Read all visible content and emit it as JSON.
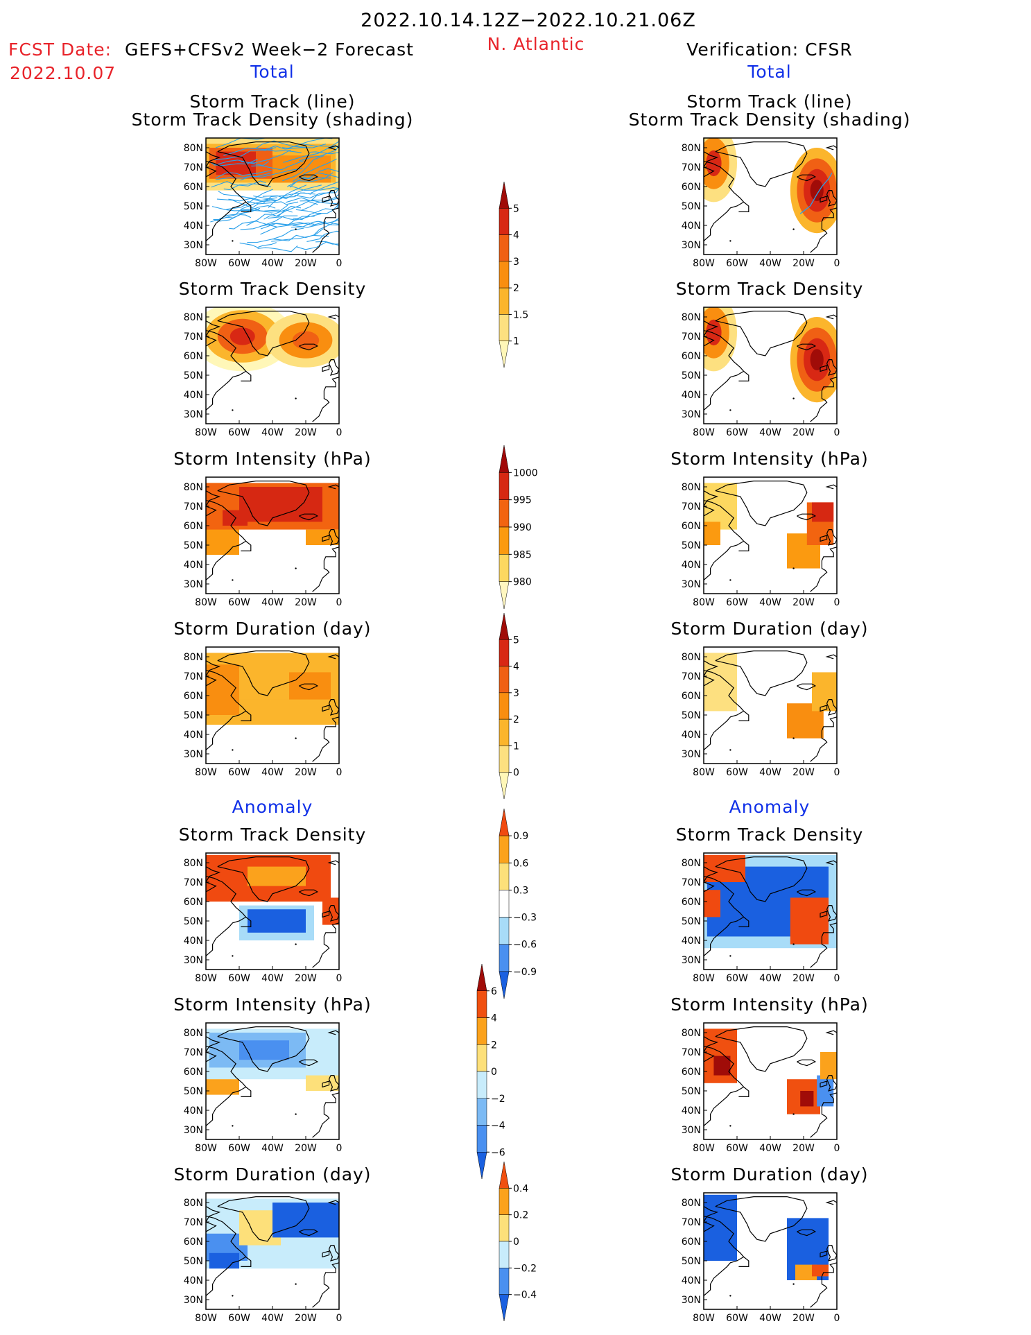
{
  "header": {
    "period": "2022.10.14.12Z−2022.10.21.06Z",
    "fcst_label": "FCST Date:",
    "forecast_label": "GEFS+CFSv2 Week−2 Forecast",
    "fcst_date": "2022.10.07",
    "region": "N. Atlantic",
    "verification_label": "Verification: CFSR",
    "total_left": "Total",
    "total_right": "Total",
    "anomaly_left": "Anomaly",
    "anomaly_right": "Anomaly"
  },
  "colors": {
    "red_text": "#e8232a",
    "blue_text": "#1030e8",
    "track_line": "#2aa0ea"
  },
  "panel_titles": {
    "track_line": "Storm Track (line)",
    "track_shading": "Storm Track Density (shading)",
    "density": "Storm Track Density",
    "intensity": "Storm Intensity (hPa)",
    "duration": "Storm Duration (day)"
  },
  "axes": {
    "lon_ticks": [
      "80W",
      "60W",
      "40W",
      "20W",
      "0"
    ],
    "lat_ticks": [
      "80N",
      "70N",
      "60N",
      "50N",
      "40N",
      "30N"
    ]
  },
  "colorbars": [
    {
      "id": "cb-density",
      "labels": [
        "5",
        "4",
        "3",
        "2",
        "1.5",
        "1"
      ],
      "colors": [
        "#fff7b8",
        "#fde080",
        "#fbb52c",
        "#f98e10",
        "#f06014",
        "#d82814",
        "#a00c08"
      ]
    },
    {
      "id": "cb-intensity",
      "labels": [
        "1000",
        "995",
        "990",
        "985",
        "980"
      ],
      "colors": [
        "#fff7c0",
        "#fdd860",
        "#fb9a10",
        "#f26410",
        "#d62812",
        "#a00808"
      ]
    },
    {
      "id": "cb-duration",
      "labels": [
        "5",
        "4",
        "3",
        "2",
        "1",
        "0"
      ],
      "colors": [
        "#fff7b8",
        "#fde080",
        "#fbb52c",
        "#f98e10",
        "#f06014",
        "#d82814",
        "#a00c08"
      ]
    },
    {
      "id": "cb-anom-density",
      "labels": [
        "0.9",
        "0.6",
        "0.3",
        "−0.3",
        "−0.6",
        "−0.9"
      ],
      "colors": [
        "#1a60e0",
        "#4a90f0",
        "#a8dcf8",
        "#ffffff",
        "#fde07a",
        "#fba21c",
        "#f04a10"
      ]
    },
    {
      "id": "cb-anom-intensity",
      "labels": [
        "6",
        "4",
        "2",
        "0",
        "−2",
        "−4",
        "−6"
      ],
      "colors": [
        "#1a60e0",
        "#4a90f0",
        "#7cbaf4",
        "#c8ecfb",
        "#fde07a",
        "#fba21c",
        "#f05010",
        "#a00c08"
      ]
    },
    {
      "id": "cb-anom-duration",
      "labels": [
        "0.4",
        "0.2",
        "0",
        "−0.2",
        "−0.4"
      ],
      "colors": [
        "#1a60e0",
        "#4a90f0",
        "#c8ecfb",
        "#fde07a",
        "#fba21c",
        "#f05010"
      ]
    }
  ],
  "chart_data": [
    {
      "type": "heatmap",
      "column": "forecast",
      "title": "Storm Track (line) / Storm Track Density (shading)",
      "lon_range": [
        -80,
        0
      ],
      "lat_range": [
        25,
        85
      ],
      "overlay": "storm track lines",
      "value_range": [
        1,
        5
      ]
    },
    {
      "type": "heatmap",
      "column": "verification",
      "title": "Storm Track (line) / Storm Track Density (shading)",
      "lon_range": [
        -80,
        0
      ],
      "lat_range": [
        25,
        85
      ],
      "overlay": "storm track lines",
      "value_range": [
        1,
        5
      ]
    },
    {
      "type": "heatmap",
      "column": "forecast",
      "title": "Storm Track Density",
      "lon_range": [
        -80,
        0
      ],
      "lat_range": [
        25,
        85
      ],
      "value_range": [
        1,
        5
      ]
    },
    {
      "type": "heatmap",
      "column": "verification",
      "title": "Storm Track Density",
      "lon_range": [
        -80,
        0
      ],
      "lat_range": [
        25,
        85
      ],
      "value_range": [
        1,
        5
      ]
    },
    {
      "type": "heatmap",
      "column": "forecast",
      "title": "Storm Intensity (hPa)",
      "lon_range": [
        -80,
        0
      ],
      "lat_range": [
        25,
        85
      ],
      "value_range": [
        980,
        1000
      ]
    },
    {
      "type": "heatmap",
      "column": "verification",
      "title": "Storm Intensity (hPa)",
      "lon_range": [
        -80,
        0
      ],
      "lat_range": [
        25,
        85
      ],
      "value_range": [
        980,
        1000
      ]
    },
    {
      "type": "heatmap",
      "column": "forecast",
      "title": "Storm Duration (day)",
      "lon_range": [
        -80,
        0
      ],
      "lat_range": [
        25,
        85
      ],
      "value_range": [
        0,
        5
      ]
    },
    {
      "type": "heatmap",
      "column": "verification",
      "title": "Storm Duration (day)",
      "lon_range": [
        -80,
        0
      ],
      "lat_range": [
        25,
        85
      ],
      "value_range": [
        0,
        5
      ]
    },
    {
      "type": "heatmap",
      "column": "forecast",
      "title": "Storm Track Density",
      "section": "Anomaly",
      "lon_range": [
        -80,
        0
      ],
      "lat_range": [
        25,
        85
      ],
      "value_range": [
        -0.9,
        0.9
      ]
    },
    {
      "type": "heatmap",
      "column": "verification",
      "title": "Storm Track Density",
      "section": "Anomaly",
      "lon_range": [
        -80,
        0
      ],
      "lat_range": [
        25,
        85
      ],
      "value_range": [
        -0.9,
        0.9
      ]
    },
    {
      "type": "heatmap",
      "column": "forecast",
      "title": "Storm Intensity (hPa)",
      "section": "Anomaly",
      "lon_range": [
        -80,
        0
      ],
      "lat_range": [
        25,
        85
      ],
      "value_range": [
        -6,
        6
      ]
    },
    {
      "type": "heatmap",
      "column": "verification",
      "title": "Storm Intensity (hPa)",
      "section": "Anomaly",
      "lon_range": [
        -80,
        0
      ],
      "lat_range": [
        25,
        85
      ],
      "value_range": [
        -6,
        6
      ]
    },
    {
      "type": "heatmap",
      "column": "forecast",
      "title": "Storm Duration (day)",
      "section": "Anomaly",
      "lon_range": [
        -80,
        0
      ],
      "lat_range": [
        25,
        85
      ],
      "value_range": [
        -0.4,
        0.4
      ]
    },
    {
      "type": "heatmap",
      "column": "verification",
      "title": "Storm Duration (day)",
      "section": "Anomaly",
      "lon_range": [
        -80,
        0
      ],
      "lat_range": [
        25,
        85
      ],
      "value_range": [
        -0.4,
        0.4
      ]
    }
  ]
}
